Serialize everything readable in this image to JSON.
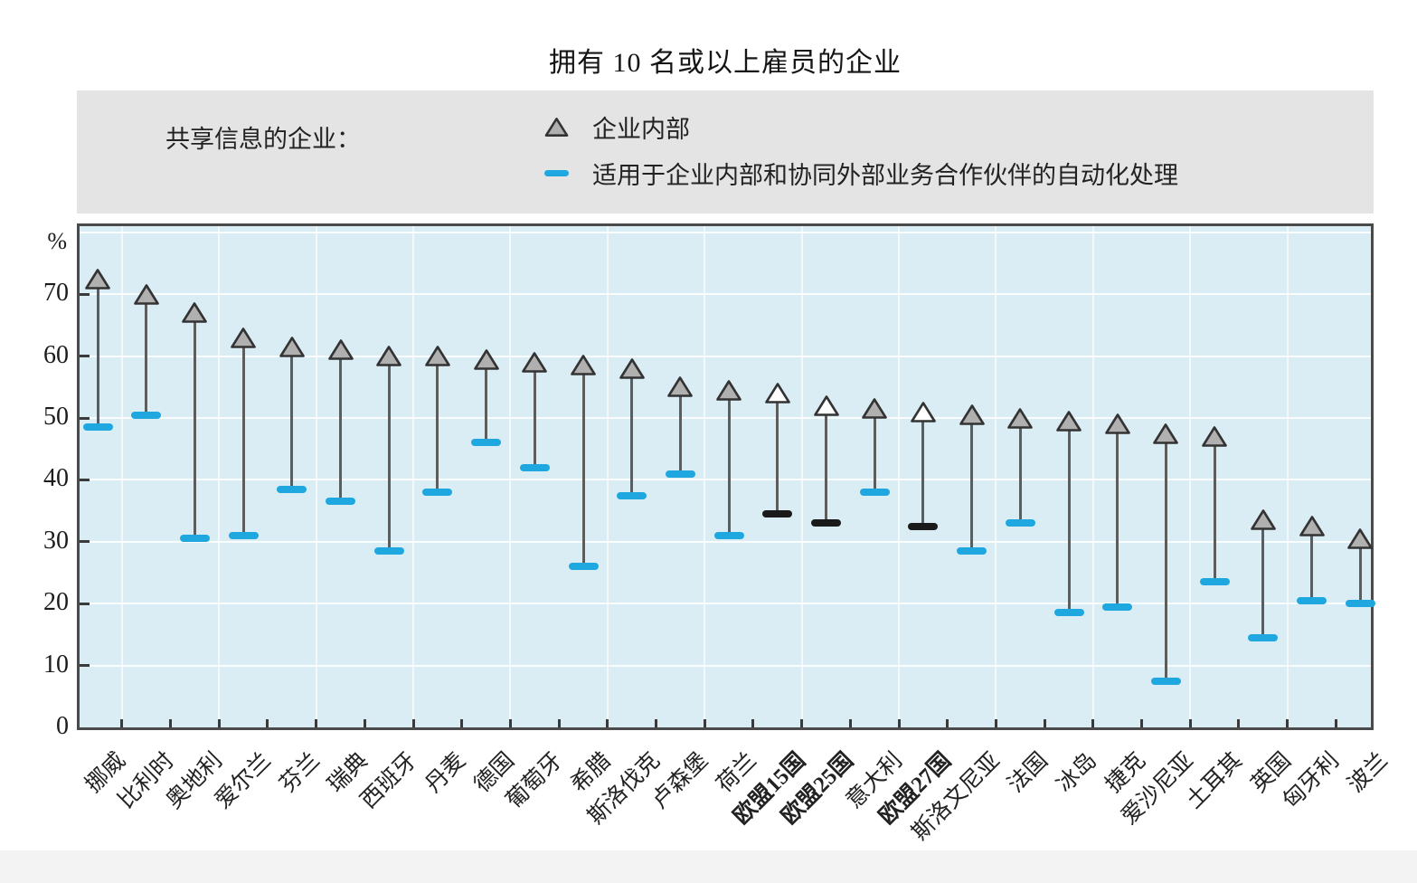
{
  "title": "拥有 10 名或以上雇员的企业",
  "legend": {
    "caption": "共享信息的企业：",
    "items": [
      {
        "label": "企业内部",
        "marker": "triangle"
      },
      {
        "label": "适用于企业内部和协同外部业务合作伙伴的自动化处理",
        "marker": "dash"
      }
    ]
  },
  "y_axis": {
    "unit": "%",
    "ticks": [
      0,
      10,
      20,
      30,
      40,
      50,
      60,
      70
    ],
    "gridlines": [
      10,
      20,
      30,
      40,
      50,
      60,
      70,
      80
    ],
    "top_value": 81
  },
  "chart_data": {
    "type": "dumbbell (vertical range plot)",
    "title": "拥有 10 名或以上雇员的企业",
    "ylabel": "%",
    "ylim": [
      0,
      81
    ],
    "grid": true,
    "legend_position": "top",
    "categories": [
      {
        "label": "挪威",
        "highlight": false
      },
      {
        "label": "比利时",
        "highlight": false
      },
      {
        "label": "奥地利",
        "highlight": false
      },
      {
        "label": "爱尔兰",
        "highlight": false
      },
      {
        "label": "芬兰",
        "highlight": false
      },
      {
        "label": "瑞典",
        "highlight": false
      },
      {
        "label": "西班牙",
        "highlight": false
      },
      {
        "label": "丹麦",
        "highlight": false
      },
      {
        "label": "德国",
        "highlight": false
      },
      {
        "label": "葡萄牙",
        "highlight": false
      },
      {
        "label": "希腊",
        "highlight": false
      },
      {
        "label": "斯洛伐克",
        "highlight": false
      },
      {
        "label": "卢森堡",
        "highlight": false
      },
      {
        "label": "荷兰",
        "highlight": false
      },
      {
        "label": "欧盟15国",
        "highlight": true
      },
      {
        "label": "欧盟25国",
        "highlight": true
      },
      {
        "label": "意大利",
        "highlight": false
      },
      {
        "label": "欧盟27国",
        "highlight": true
      },
      {
        "label": "斯洛文尼亚",
        "highlight": false
      },
      {
        "label": "法国",
        "highlight": false
      },
      {
        "label": "冰岛",
        "highlight": false
      },
      {
        "label": "捷克",
        "highlight": false
      },
      {
        "label": "爱沙尼亚",
        "highlight": false
      },
      {
        "label": "土耳其",
        "highlight": false
      },
      {
        "label": "英国",
        "highlight": false
      },
      {
        "label": "匈牙利",
        "highlight": false
      },
      {
        "label": "波兰",
        "highlight": false
      }
    ],
    "series": [
      {
        "name": "企业内部",
        "marker": "triangle",
        "values": [
          72.5,
          70,
          67,
          63,
          61.5,
          61,
          60,
          60,
          59.5,
          59,
          58.5,
          58,
          55,
          54.5,
          54,
          52,
          51.5,
          51,
          50.5,
          50,
          49.5,
          49,
          47.5,
          47,
          33.5,
          32.5,
          30.5
        ]
      },
      {
        "name": "适用于企业内部和协同外部业务合作伙伴的自动化处理",
        "marker": "dash",
        "values": [
          48.5,
          50.5,
          30.5,
          31,
          38.5,
          36.5,
          28.5,
          38,
          46,
          42,
          26,
          37.5,
          41,
          31,
          34.5,
          33,
          38,
          32.5,
          28.5,
          33,
          18.5,
          19.5,
          7.5,
          23.5,
          14.5,
          20.5,
          20
        ]
      }
    ],
    "highlight_meaning": "欧盟汇总值：白色三角形与黑色横条，坐标标签加粗",
    "colors": {
      "plot_bg": "#dbedf4",
      "legend_bg": "#e4e4e4",
      "grid": "#ffffff",
      "triangle_fill": "#b0b0b0",
      "eu_triangle_fill": "#ffffff",
      "marker_outline": "#333333",
      "bar": "#1fa8e0",
      "eu_bar": "#1a1a1a",
      "stem": "#5d5d5d",
      "border": "#4a4a4a",
      "text": "#1a1a1a"
    }
  }
}
